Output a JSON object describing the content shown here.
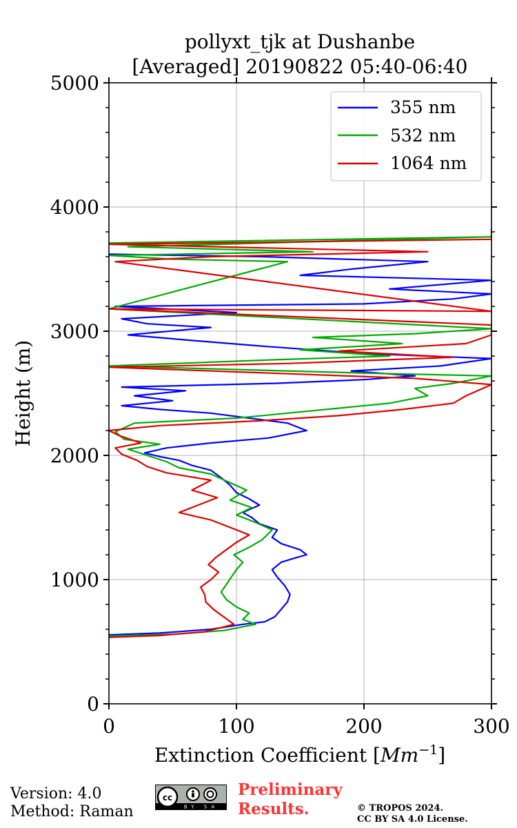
{
  "chart_data": {
    "type": "line",
    "title_line1": "pollyxt_tjk at Dushanbe",
    "title_line2": "[Averaged] 20190822 05:40-06:40",
    "xlabel_main": "Extinction Coefficient [",
    "xlabel_unit": "Mm",
    "xlabel_exp": "−1",
    "xlabel_close": "]",
    "ylabel": "Height (m)",
    "xlim": [
      0,
      300
    ],
    "ylim": [
      0,
      5000
    ],
    "xticks": [
      "0",
      "100",
      "200",
      "300"
    ],
    "yticks": [
      "0",
      "1000",
      "2000",
      "3000",
      "4000",
      "5000"
    ],
    "xtick_values": [
      0,
      100,
      200,
      300
    ],
    "ytick_values": [
      0,
      1000,
      2000,
      3000,
      4000,
      5000
    ],
    "grid": true,
    "legend_position": "top-right",
    "series": [
      {
        "name": "355 nm",
        "color": "#0000ff",
        "points": [
          [
            0,
            555
          ],
          [
            40,
            570
          ],
          [
            80,
            600
          ],
          [
            105,
            640
          ],
          [
            122,
            660
          ],
          [
            130,
            700
          ],
          [
            135,
            760
          ],
          [
            140,
            820
          ],
          [
            142,
            880
          ],
          [
            138,
            950
          ],
          [
            132,
            1020
          ],
          [
            128,
            1080
          ],
          [
            135,
            1140
          ],
          [
            148,
            1180
          ],
          [
            155,
            1200
          ],
          [
            150,
            1240
          ],
          [
            135,
            1290
          ],
          [
            128,
            1340
          ],
          [
            132,
            1400
          ],
          [
            118,
            1450
          ],
          [
            112,
            1500
          ],
          [
            105,
            1540
          ],
          [
            118,
            1600
          ],
          [
            110,
            1650
          ],
          [
            100,
            1700
          ],
          [
            95,
            1760
          ],
          [
            88,
            1820
          ],
          [
            80,
            1880
          ],
          [
            65,
            1920
          ],
          [
            55,
            1960
          ],
          [
            40,
            1990
          ],
          [
            28,
            2020
          ],
          [
            45,
            2060
          ],
          [
            80,
            2100
          ],
          [
            125,
            2140
          ],
          [
            155,
            2200
          ],
          [
            140,
            2260
          ],
          [
            110,
            2300
          ],
          [
            80,
            2340
          ],
          [
            40,
            2370
          ],
          [
            10,
            2400
          ],
          [
            50,
            2440
          ],
          [
            20,
            2480
          ],
          [
            60,
            2520
          ],
          [
            10,
            2550
          ],
          [
            130,
            2580
          ],
          [
            200,
            2610
          ],
          [
            240,
            2640
          ],
          [
            190,
            2680
          ],
          [
            260,
            2720
          ],
          [
            300,
            2780
          ],
          [
            200,
            2820
          ],
          [
            120,
            2880
          ],
          [
            60,
            2930
          ],
          [
            15,
            2970
          ],
          [
            80,
            3030
          ],
          [
            30,
            3060
          ],
          [
            10,
            3100
          ],
          [
            100,
            3150
          ],
          [
            5,
            3200
          ],
          [
            200,
            3220
          ],
          [
            270,
            3260
          ],
          [
            300,
            3300
          ],
          [
            220,
            3340
          ],
          [
            300,
            3410
          ],
          [
            150,
            3450
          ],
          [
            190,
            3500
          ],
          [
            250,
            3560
          ],
          [
            120,
            3600
          ],
          [
            0,
            3620
          ]
        ]
      },
      {
        "name": "532 nm",
        "color": "#00aa00",
        "points": [
          [
            0,
            545
          ],
          [
            50,
            560
          ],
          [
            90,
            590
          ],
          [
            115,
            640
          ],
          [
            105,
            680
          ],
          [
            110,
            730
          ],
          [
            100,
            780
          ],
          [
            92,
            840
          ],
          [
            88,
            900
          ],
          [
            92,
            960
          ],
          [
            96,
            1020
          ],
          [
            100,
            1080
          ],
          [
            105,
            1140
          ],
          [
            98,
            1200
          ],
          [
            110,
            1260
          ],
          [
            120,
            1320
          ],
          [
            128,
            1400
          ],
          [
            115,
            1460
          ],
          [
            100,
            1520
          ],
          [
            112,
            1580
          ],
          [
            95,
            1640
          ],
          [
            108,
            1720
          ],
          [
            95,
            1780
          ],
          [
            80,
            1850
          ],
          [
            55,
            1900
          ],
          [
            45,
            1950
          ],
          [
            30,
            2000
          ],
          [
            15,
            2050
          ],
          [
            40,
            2090
          ],
          [
            12,
            2130
          ],
          [
            5,
            2190
          ],
          [
            20,
            2260
          ],
          [
            100,
            2300
          ],
          [
            160,
            2360
          ],
          [
            220,
            2420
          ],
          [
            250,
            2480
          ],
          [
            240,
            2540
          ],
          [
            270,
            2580
          ],
          [
            300,
            2640
          ],
          [
            210,
            2660
          ],
          [
            0,
            2720
          ],
          [
            130,
            2770
          ],
          [
            220,
            2800
          ],
          [
            150,
            2850
          ],
          [
            230,
            2900
          ],
          [
            160,
            2950
          ],
          [
            240,
            2980
          ],
          [
            300,
            3020
          ],
          [
            0,
            3180
          ],
          [
            140,
            3560
          ],
          [
            50,
            3580
          ],
          [
            0,
            3610
          ],
          [
            160,
            3640
          ],
          [
            15,
            3680
          ],
          [
            300,
            3760
          ],
          [
            0,
            3710
          ]
        ]
      },
      {
        "name": "1064 nm",
        "color": "#dd0000",
        "points": [
          [
            0,
            535
          ],
          [
            40,
            550
          ],
          [
            75,
            580
          ],
          [
            98,
            640
          ],
          [
            90,
            700
          ],
          [
            82,
            760
          ],
          [
            76,
            820
          ],
          [
            75,
            880
          ],
          [
            72,
            940
          ],
          [
            80,
            1000
          ],
          [
            86,
            1060
          ],
          [
            78,
            1120
          ],
          [
            84,
            1180
          ],
          [
            92,
            1240
          ],
          [
            100,
            1300
          ],
          [
            110,
            1360
          ],
          [
            95,
            1420
          ],
          [
            80,
            1480
          ],
          [
            55,
            1540
          ],
          [
            70,
            1600
          ],
          [
            85,
            1660
          ],
          [
            65,
            1720
          ],
          [
            80,
            1800
          ],
          [
            45,
            1860
          ],
          [
            30,
            1910
          ],
          [
            22,
            1960
          ],
          [
            10,
            2010
          ],
          [
            5,
            2060
          ],
          [
            25,
            2100
          ],
          [
            8,
            2160
          ],
          [
            0,
            2200
          ],
          [
            40,
            2240
          ],
          [
            120,
            2280
          ],
          [
            180,
            2320
          ],
          [
            230,
            2370
          ],
          [
            270,
            2420
          ],
          [
            280,
            2480
          ],
          [
            300,
            2570
          ],
          [
            240,
            2620
          ],
          [
            0,
            2710
          ],
          [
            140,
            2740
          ],
          [
            270,
            2790
          ],
          [
            180,
            2840
          ],
          [
            280,
            2900
          ],
          [
            300,
            2970
          ],
          [
            300,
            3050
          ],
          [
            0,
            3180
          ],
          [
            300,
            3160
          ],
          [
            5,
            3560
          ],
          [
            80,
            3600
          ],
          [
            250,
            3640
          ],
          [
            0,
            3700
          ],
          [
            300,
            3740
          ],
          [
            300,
            3830
          ]
        ]
      }
    ]
  },
  "footer": {
    "version": "Version: 4.0",
    "method": "Method: Raman",
    "preliminary_line1": "Preliminary",
    "preliminary_line2": "Results.",
    "copyright_line1": "© TROPOS 2024.",
    "copyright_line2": "CC BY SA 4.0 License.",
    "license_badge_text": "BY SA"
  }
}
